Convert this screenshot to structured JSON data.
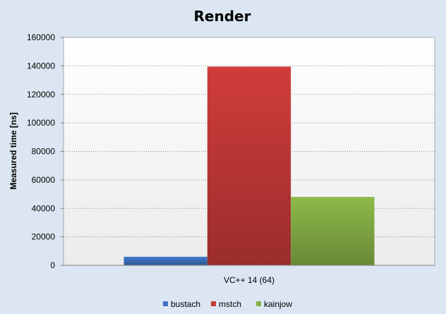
{
  "chart_data": {
    "type": "bar",
    "title": "Render",
    "xlabel": "",
    "ylabel": "Measured time [ns]",
    "ylim": [
      0,
      160000
    ],
    "yticks": [
      0,
      20000,
      40000,
      60000,
      80000,
      100000,
      120000,
      140000,
      160000
    ],
    "categories": [
      "VC++ 14 (64)"
    ],
    "series": [
      {
        "name": "bustach",
        "values": [
          6000
        ],
        "color": "#3f73c2"
      },
      {
        "name": "mstch",
        "values": [
          139500
        ],
        "color": "#c63a38"
      },
      {
        "name": "kainjow",
        "values": [
          48000
        ],
        "color": "#86b046"
      }
    ],
    "grid": true,
    "legend_position": "bottom"
  }
}
